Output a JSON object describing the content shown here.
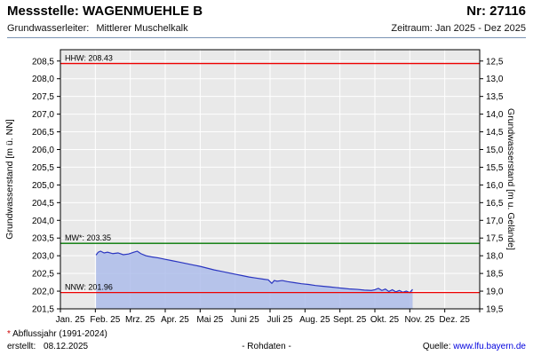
{
  "header": {
    "title": "Messstelle: WAGENMUEHLE B",
    "number": "Nr: 27116",
    "aquifer_label": "Grundwasserleiter:",
    "aquifer_value": "Mittlerer Muschelkalk",
    "period": "Zeitraum: Jan 2025 - Dez 2025"
  },
  "footer": {
    "footnote_star": "*",
    "footnote_text": " Abflussjahr (1991-2024)",
    "created_label": "erstellt:",
    "created_date": "08.12.2025",
    "center_text": "- Rohdaten -",
    "source_label": "Quelle:",
    "source_link": "www.lfu.bayern.de"
  },
  "chart_data": {
    "type": "area",
    "title": "",
    "xlabel": "",
    "ylabel_left": "Grundwasserstand [m ü. NN]",
    "ylabel_right": "Grundwasserstand [m u. Gelände]",
    "plot_bg": "#e9e9e9",
    "grid_color": "#ffffff",
    "ylim_left": [
      201.5,
      208.82
    ],
    "x_months": 12,
    "x_tick_labels": [
      "Jan. 25",
      "Feb. 25",
      "Mrz. 25",
      "Apr. 25",
      "Mai 25",
      "Juni 25",
      "Juli 25",
      "Aug. 25",
      "Sept. 25",
      "Okt. 25",
      "Nov. 25",
      "Dez. 25"
    ],
    "y_tick_values": [
      208.5,
      208.0,
      207.5,
      207.0,
      206.5,
      206.0,
      205.5,
      205.0,
      204.5,
      204.0,
      203.5,
      203.0,
      202.5,
      202.0,
      201.5
    ],
    "y_left_tick_labels": [
      "208,5",
      "208,0",
      "207,5",
      "207,0",
      "206,5",
      "206,0",
      "205,5",
      "205,0",
      "204,5",
      "204,0",
      "203,5",
      "203,0",
      "202,5",
      "202,0",
      "201,5"
    ],
    "y_right_tick_labels": [
      "12,5",
      "13,0",
      "13,5",
      "14,0",
      "14,5",
      "15,0",
      "15,5",
      "16,0",
      "16,5",
      "17,0",
      "17,5",
      "18,0",
      "18,5",
      "19,0",
      "19,5"
    ],
    "reference_lines": [
      {
        "name": "HHW",
        "label": "HHW: 208.43",
        "value": 208.43,
        "color": "#ee0000"
      },
      {
        "name": "MW",
        "label": "MW*: 203.35",
        "value": 203.35,
        "color": "#007700"
      },
      {
        "name": "NNW",
        "label": "NNW: 201.96",
        "value": 201.96,
        "color": "#ee0000"
      }
    ],
    "series": [
      {
        "name": "Grundwasserstand Rohdaten 2025",
        "line_color": "#2a35c0",
        "fill_color": "#a9b9ea",
        "fill_opacity": 0.8,
        "x": [
          1.02,
          1.08,
          1.15,
          1.25,
          1.35,
          1.5,
          1.65,
          1.8,
          1.95,
          2.1,
          2.2,
          2.3,
          2.45,
          2.6,
          2.8,
          3.0,
          3.2,
          3.4,
          3.6,
          3.8,
          4.0,
          4.2,
          4.4,
          4.6,
          4.8,
          5.0,
          5.2,
          5.4,
          5.6,
          5.8,
          5.95,
          6.05,
          6.12,
          6.2,
          6.35,
          6.5,
          6.7,
          6.9,
          7.1,
          7.3,
          7.5,
          7.7,
          7.9,
          8.1,
          8.3,
          8.5,
          8.7,
          8.9,
          9.0,
          9.1,
          9.2,
          9.3,
          9.4,
          9.5,
          9.6,
          9.7,
          9.8,
          9.9,
          10.0,
          10.08
        ],
        "values": [
          203.02,
          203.1,
          203.13,
          203.08,
          203.1,
          203.06,
          203.08,
          203.03,
          203.05,
          203.1,
          203.13,
          203.06,
          203.0,
          202.97,
          202.94,
          202.9,
          202.86,
          202.82,
          202.78,
          202.74,
          202.7,
          202.65,
          202.6,
          202.56,
          202.52,
          202.48,
          202.44,
          202.4,
          202.37,
          202.34,
          202.32,
          202.22,
          202.3,
          202.28,
          202.3,
          202.27,
          202.24,
          202.21,
          202.19,
          202.16,
          202.14,
          202.12,
          202.1,
          202.08,
          202.06,
          202.05,
          202.03,
          202.02,
          202.04,
          202.08,
          202.02,
          202.06,
          201.99,
          202.04,
          201.98,
          202.02,
          201.97,
          202.0,
          201.96,
          202.05
        ]
      }
    ]
  }
}
